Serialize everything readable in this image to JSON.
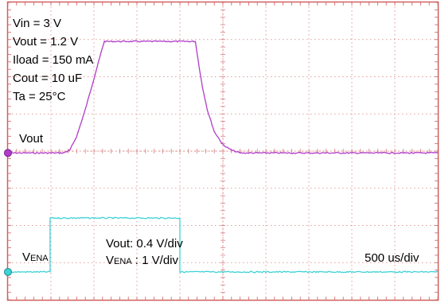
{
  "colors": {
    "frame": "#d06060",
    "grid": "#d98080",
    "vout": "#b03cc8",
    "vena": "#3ed2d6",
    "text": "#000000"
  },
  "conditions": [
    "Vin = 3 V",
    "Vout = 1.2 V",
    "Iload = 150 mA",
    "Cout = 10 uF",
    "Ta = 25°C"
  ],
  "labels": {
    "vout_trace": "Vout",
    "vena_trace_main": "V",
    "vena_trace_sub": "ENA",
    "scale_vout": "Vout: 0.4 V/div",
    "scale_vena_main": "V",
    "scale_vena_sub": "ENA",
    "scale_vena_rest": " : 1 V/div",
    "timebase": "500 us/div"
  },
  "chart_data": {
    "type": "line",
    "time_per_div_us": 500,
    "x_divisions": 10,
    "y_divisions": 8,
    "xlim": [
      0,
      5000
    ],
    "grid": true,
    "series": [
      {
        "name": "Vout",
        "volts_per_div": 0.4,
        "ground_division": 3.95,
        "time_us": [
          0,
          640,
          720,
          800,
          900,
          1000,
          1080,
          1120,
          2180,
          2220,
          2260,
          2320,
          2400,
          2500,
          2600,
          2700,
          5000
        ],
        "volts": [
          0,
          0,
          0.03,
          0.18,
          0.47,
          0.8,
          1.07,
          1.2,
          1.2,
          0.95,
          0.72,
          0.46,
          0.23,
          0.09,
          0.03,
          0,
          0
        ]
      },
      {
        "name": "VENA",
        "volts_per_div": 1,
        "ground_division": 0.75,
        "time_us": [
          0,
          490,
          490,
          2000,
          2000,
          5000
        ],
        "volts": [
          0,
          0,
          1.45,
          1.45,
          0,
          0
        ]
      }
    ]
  }
}
